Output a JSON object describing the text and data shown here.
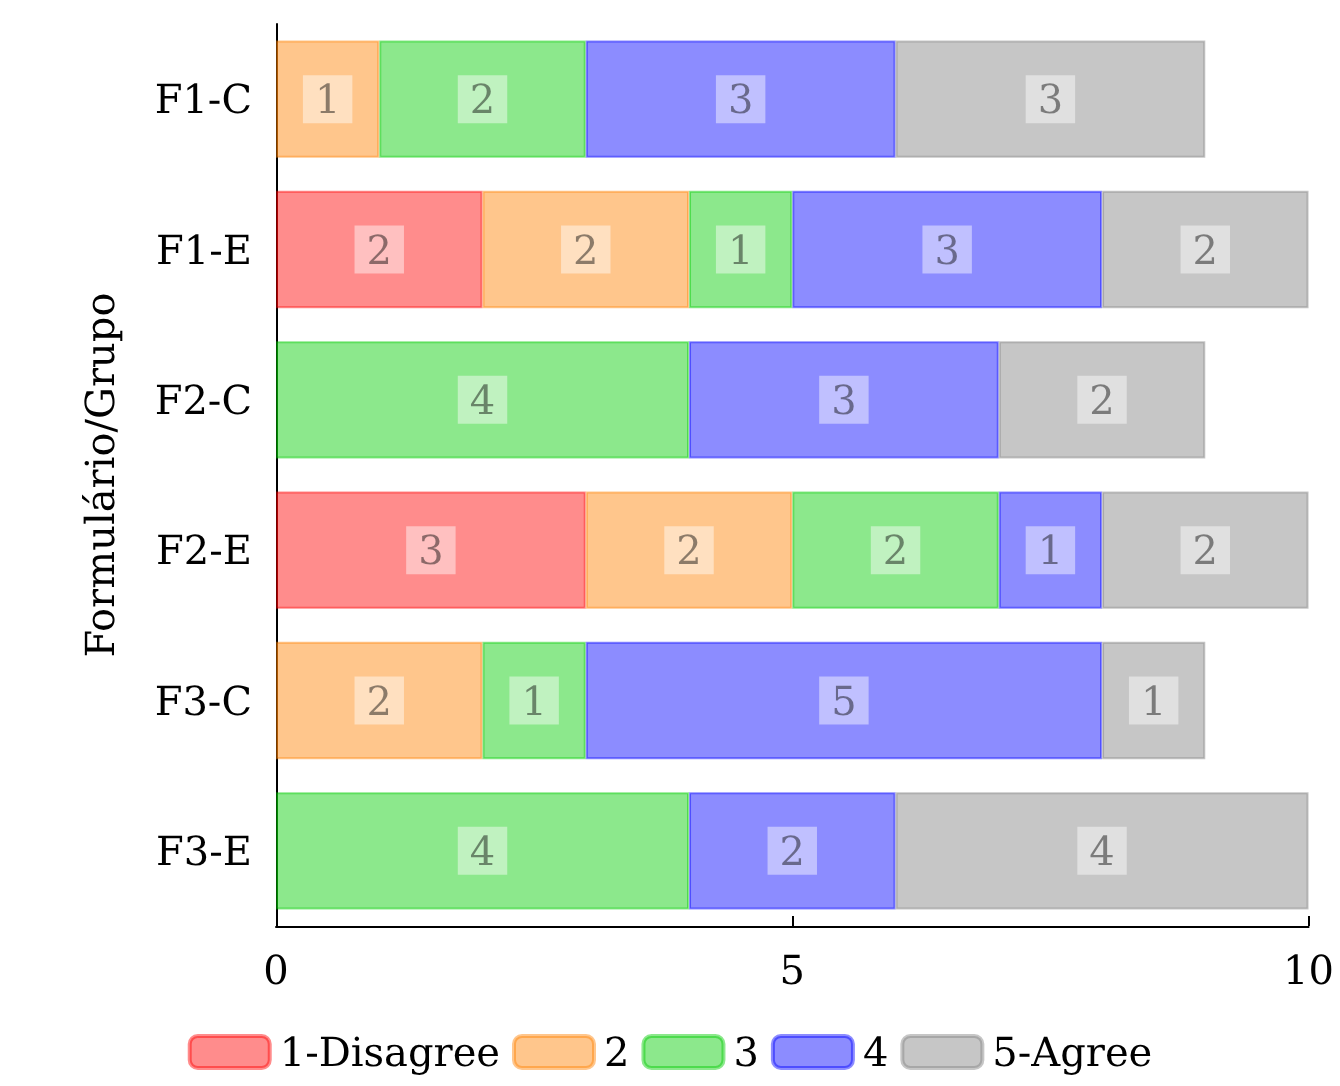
{
  "chart_data": {
    "type": "bar",
    "orientation": "horizontal",
    "stacked": true,
    "ylabel": "Formulário/Grupo",
    "categories": [
      "F1-C",
      "F1-E",
      "F2-C",
      "F2-E",
      "F3-C",
      "F3-E"
    ],
    "series": [
      {
        "name": "1-Disagree",
        "color": "#ff0000",
        "values": [
          null,
          2,
          null,
          3,
          null,
          null
        ]
      },
      {
        "name": "2",
        "color": "#ff8000",
        "values": [
          1,
          2,
          null,
          2,
          2,
          null
        ]
      },
      {
        "name": "3",
        "color": "#00cc00",
        "values": [
          2,
          1,
          4,
          2,
          1,
          4
        ]
      },
      {
        "name": "4",
        "color": "#0000ff",
        "values": [
          3,
          3,
          3,
          1,
          5,
          2
        ]
      },
      {
        "name": "5-Agree",
        "color": "#808080",
        "values": [
          3,
          2,
          2,
          2,
          1,
          4
        ]
      }
    ],
    "xlim": [
      0,
      10
    ],
    "xticks": [
      0,
      5,
      10
    ],
    "grid": false,
    "legend": "bottom",
    "data_labels": true
  }
}
